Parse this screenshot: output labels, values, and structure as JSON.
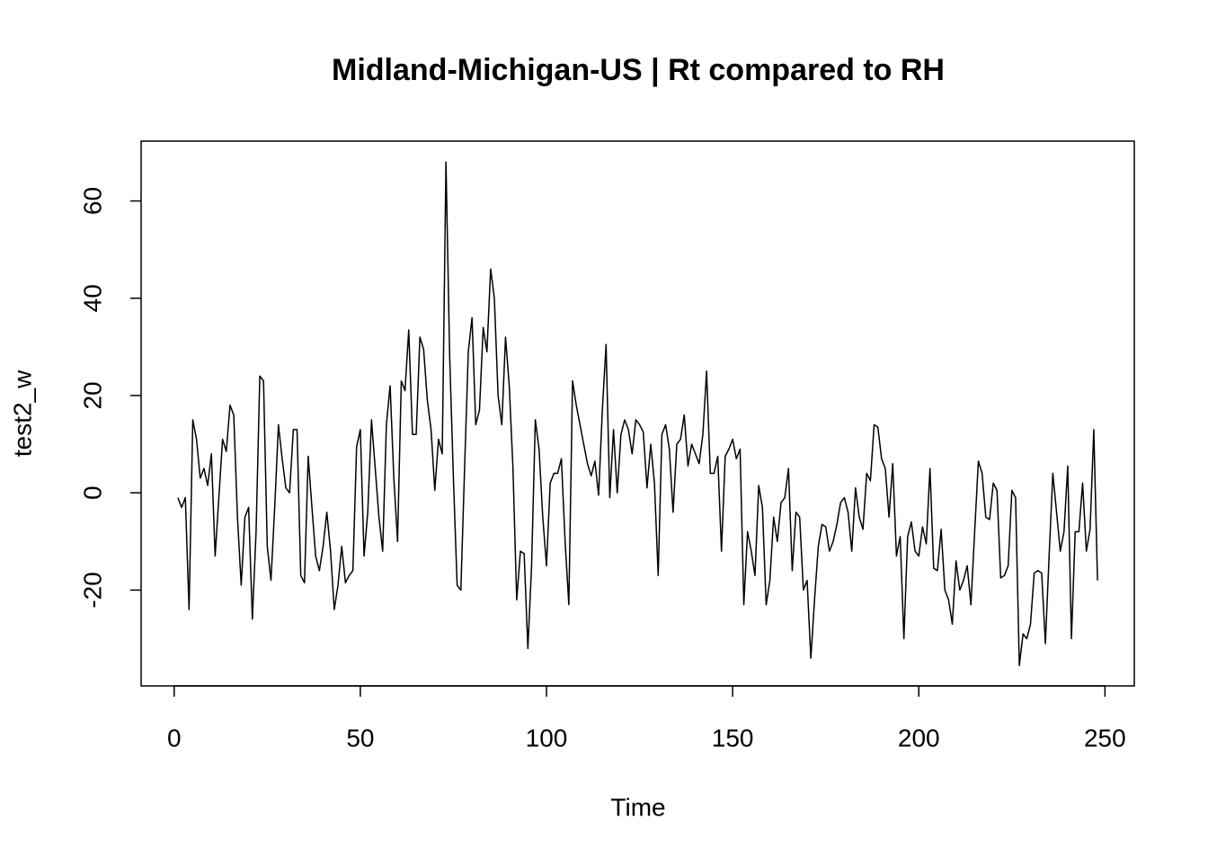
{
  "chart_data": {
    "type": "line",
    "title": "Midland-Michigan-US | Rt compared to RH",
    "xlabel": "Time",
    "ylabel": "test2_w",
    "color": "#000000",
    "x": [
      1,
      2,
      3,
      4,
      5,
      6,
      7,
      8,
      9,
      10,
      11,
      12,
      13,
      14,
      15,
      16,
      17,
      18,
      19,
      20,
      21,
      22,
      23,
      24,
      25,
      26,
      27,
      28,
      29,
      30,
      31,
      32,
      33,
      34,
      35,
      36,
      37,
      38,
      39,
      40,
      41,
      42,
      43,
      44,
      45,
      46,
      47,
      48,
      49,
      50,
      51,
      52,
      53,
      54,
      55,
      56,
      57,
      58,
      59,
      60,
      61,
      62,
      63,
      64,
      65,
      66,
      67,
      68,
      69,
      70,
      71,
      72,
      73,
      74,
      75,
      76,
      77,
      78,
      79,
      80,
      81,
      82,
      83,
      84,
      85,
      86,
      87,
      88,
      89,
      90,
      91,
      92,
      93,
      94,
      95,
      96,
      97,
      98,
      99,
      100,
      101,
      102,
      103,
      104,
      105,
      106,
      107,
      108,
      109,
      110,
      111,
      112,
      113,
      114,
      115,
      116,
      117,
      118,
      119,
      120,
      121,
      122,
      123,
      124,
      125,
      126,
      127,
      128,
      129,
      130,
      131,
      132,
      133,
      134,
      135,
      136,
      137,
      138,
      139,
      140,
      141,
      142,
      143,
      144,
      145,
      146,
      147,
      148,
      149,
      150,
      151,
      152,
      153,
      154,
      155,
      156,
      157,
      158,
      159,
      160,
      161,
      162,
      163,
      164,
      165,
      166,
      167,
      168,
      169,
      170,
      171,
      172,
      173,
      174,
      175,
      176,
      177,
      178,
      179,
      180,
      181,
      182,
      183,
      184,
      185,
      186,
      187,
      188,
      189,
      190,
      191,
      192,
      193,
      194,
      195,
      196,
      197,
      198,
      199,
      200,
      201,
      202,
      203,
      204,
      205,
      206,
      207,
      208,
      209,
      210,
      211,
      212,
      213,
      214,
      215,
      216,
      217,
      218,
      219,
      220,
      221,
      222,
      223,
      224,
      225,
      226,
      227,
      228,
      229,
      230,
      231,
      232,
      233,
      234,
      235,
      236,
      237,
      238,
      239,
      240,
      241,
      242,
      243,
      244,
      245,
      246,
      247,
      248
    ],
    "values": [
      -1,
      -3,
      -1,
      -24,
      15,
      11,
      3,
      5,
      1.5,
      8,
      -13,
      -1,
      11,
      8.5,
      18,
      16,
      -5,
      -19,
      -5,
      -3,
      -26,
      -8,
      24,
      23,
      -11,
      -18,
      -3,
      14,
      7,
      1,
      0,
      13,
      13,
      -17,
      -18.5,
      7.5,
      -3,
      -13,
      -16,
      -11,
      -4,
      -12,
      -24,
      -19,
      -11,
      -18.5,
      -17,
      -16,
      9.5,
      13,
      -13,
      -4,
      15,
      5,
      -5,
      -12,
      14,
      22,
      3,
      -10,
      23,
      21,
      33.5,
      12,
      12,
      32,
      29.5,
      19,
      13,
      0.5,
      11,
      8,
      68,
      28,
      3,
      -19,
      -20,
      5,
      29,
      36,
      14,
      17,
      34,
      29,
      46,
      40,
      20,
      14,
      32,
      22,
      5,
      -22,
      -12,
      -12.5,
      -32,
      -15,
      15,
      9,
      -5,
      -15,
      2,
      4,
      4,
      7,
      -10,
      -23,
      23,
      18,
      14,
      10,
      6,
      3.5,
      6.5,
      -0.5,
      17,
      30.5,
      -1,
      13,
      0,
      12,
      15,
      13,
      8,
      15,
      14,
      12.5,
      1,
      10,
      2,
      -17,
      12,
      14,
      9,
      -4,
      10,
      11,
      16,
      5.5,
      10,
      8,
      6,
      12,
      25,
      4,
      4,
      7.5,
      -12,
      7.5,
      9,
      11,
      7,
      9,
      -23,
      -8,
      -12,
      -17,
      1.5,
      -3,
      -23,
      -18,
      -5,
      -10,
      -2,
      -1,
      5,
      -16,
      -4,
      -5,
      -20,
      -18,
      -34,
      -22,
      -11,
      -6.5,
      -7,
      -12,
      -10,
      -6.5,
      -2,
      -1,
      -4,
      -12,
      1,
      -5,
      -7.5,
      4,
      2.5,
      14,
      13.5,
      7,
      5,
      -5,
      6,
      -13,
      -9,
      -30,
      -9,
      -6,
      -12,
      -13,
      -7,
      -10.5,
      5,
      -15.5,
      -16,
      -7.5,
      -20,
      -22,
      -27,
      -14,
      -20,
      -18,
      -15,
      -23,
      -8,
      6.5,
      4,
      -5,
      -5.5,
      2,
      0.5,
      -17.5,
      -17,
      -15,
      0.5,
      -1,
      -35.5,
      -29,
      -30,
      -27,
      -16.5,
      -16,
      -16.5,
      -31,
      -13,
      4,
      -4,
      -12,
      -8,
      5.5,
      -30,
      -8,
      -8,
      2,
      -12,
      -7.5,
      13,
      -18
    ],
    "xlim": [
      -8.88,
      257.88
    ],
    "xticks": [
      0,
      50,
      100,
      150,
      200,
      250
    ],
    "ylim": [
      -39.7,
      72.3
    ],
    "yticks": [
      -20,
      0,
      20,
      40,
      60
    ]
  }
}
